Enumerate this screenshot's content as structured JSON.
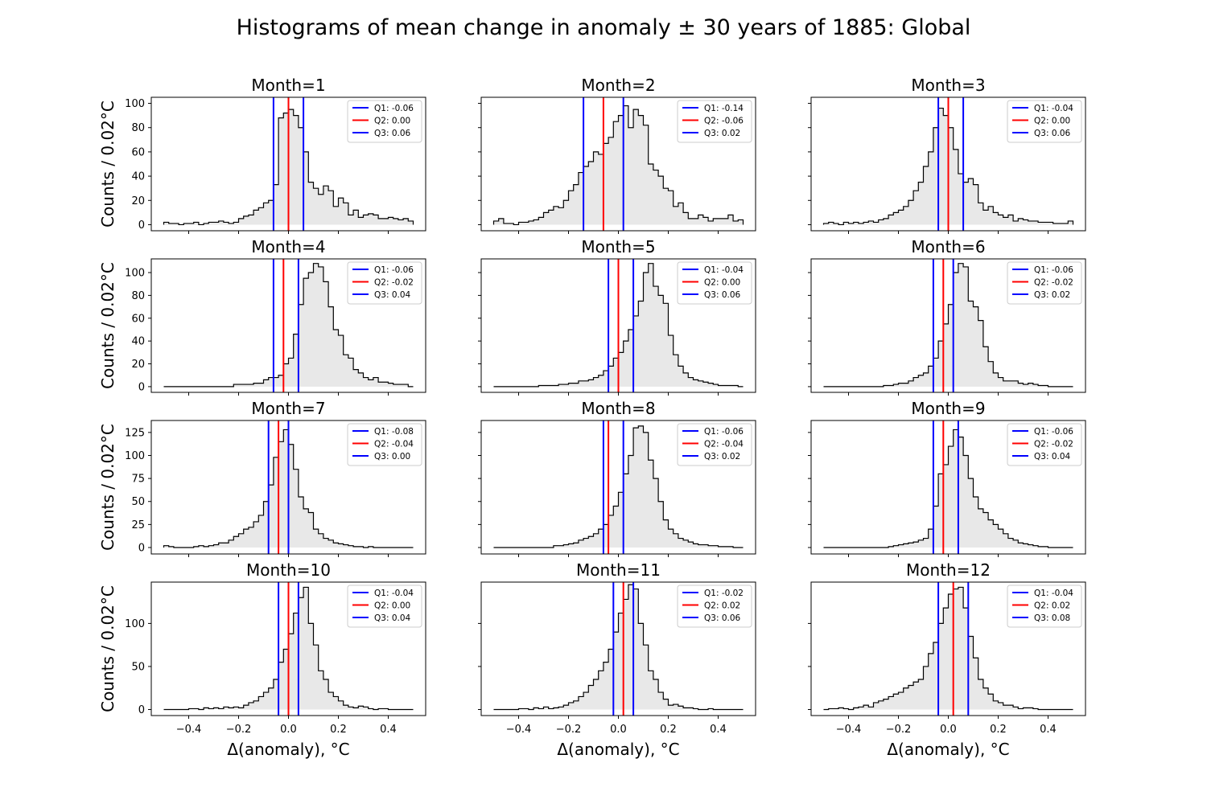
{
  "figure": {
    "title": "Histograms of mean change in anomaly ± 30 years of 1885: Global"
  },
  "chart_data": [
    {
      "type": "bar",
      "title": "Month=1",
      "ylabel": "Counts / 0.02°C",
      "xlabel": "",
      "xlim": [
        -0.55,
        0.55
      ],
      "ylim": [
        -5,
        105
      ],
      "yticks": [
        0,
        20,
        40,
        60,
        80,
        100
      ],
      "ytick_labels": [
        "0",
        "20",
        "40",
        "60",
        "80",
        "100"
      ],
      "show_yticklabels": true,
      "xticks": [
        -0.4,
        -0.2,
        0.0,
        0.2,
        0.4
      ],
      "xtick_labels": [],
      "show_xticklabels": false,
      "bin_edges_range": [
        -0.5,
        0.5
      ],
      "bin_width": 0.02,
      "counts": [
        2,
        1,
        1,
        0,
        1,
        1,
        2,
        0,
        1,
        2,
        2,
        3,
        2,
        1,
        2,
        5,
        7,
        8,
        12,
        14,
        18,
        20,
        33,
        88,
        92,
        95,
        90,
        80,
        60,
        35,
        30,
        25,
        32,
        28,
        15,
        22,
        18,
        8,
        12,
        6,
        8,
        9,
        8,
        5,
        5,
        6,
        5,
        4,
        5,
        3
      ],
      "quartiles": [
        {
          "name": "Q1: -0.06",
          "x": -0.06,
          "color": "#0000ff"
        },
        {
          "name": "Q2: 0.00",
          "x": 0.0,
          "color": "#ff0000"
        },
        {
          "name": "Q3: 0.06",
          "x": 0.06,
          "color": "#0000ff"
        }
      ]
    },
    {
      "type": "bar",
      "title": "Month=2",
      "ylabel": "",
      "xlabel": "",
      "xlim": [
        -0.55,
        0.55
      ],
      "ylim": [
        -5,
        105
      ],
      "yticks": [
        0,
        20,
        40,
        60,
        80,
        100
      ],
      "ytick_labels": [],
      "show_yticklabels": false,
      "xticks": [
        -0.4,
        -0.2,
        0.0,
        0.2,
        0.4
      ],
      "xtick_labels": [],
      "show_xticklabels": false,
      "bin_edges_range": [
        -0.5,
        0.5
      ],
      "bin_width": 0.02,
      "counts": [
        3,
        5,
        1,
        1,
        0,
        2,
        2,
        3,
        4,
        6,
        10,
        12,
        15,
        14,
        20,
        28,
        33,
        43,
        48,
        52,
        60,
        58,
        67,
        72,
        85,
        90,
        98,
        80,
        95,
        90,
        82,
        50,
        45,
        40,
        30,
        28,
        15,
        18,
        10,
        5,
        5,
        8,
        6,
        3,
        5,
        5,
        5,
        8,
        3,
        4
      ],
      "quartiles": [
        {
          "name": "Q1: -0.14",
          "x": -0.14,
          "color": "#0000ff"
        },
        {
          "name": "Q2: -0.06",
          "x": -0.06,
          "color": "#ff0000"
        },
        {
          "name": "Q3: 0.02",
          "x": 0.02,
          "color": "#0000ff"
        }
      ]
    },
    {
      "type": "bar",
      "title": "Month=3",
      "ylabel": "",
      "xlabel": "",
      "xlim": [
        -0.55,
        0.55
      ],
      "ylim": [
        -5,
        105
      ],
      "yticks": [
        0,
        20,
        40,
        60,
        80,
        100
      ],
      "ytick_labels": [],
      "show_yticklabels": false,
      "xticks": [
        -0.4,
        -0.2,
        0.0,
        0.2,
        0.4
      ],
      "xtick_labels": [],
      "show_xticklabels": false,
      "bin_edges_range": [
        -0.5,
        0.5
      ],
      "bin_width": 0.02,
      "counts": [
        1,
        2,
        1,
        0,
        2,
        1,
        2,
        1,
        2,
        3,
        2,
        4,
        5,
        8,
        10,
        12,
        15,
        20,
        28,
        35,
        48,
        60,
        80,
        96,
        90,
        80,
        62,
        42,
        35,
        38,
        33,
        18,
        12,
        15,
        10,
        8,
        6,
        8,
        3,
        5,
        4,
        3,
        3,
        2,
        2,
        2,
        1,
        1,
        1,
        3
      ],
      "quartiles": [
        {
          "name": "Q1: -0.04",
          "x": -0.04,
          "color": "#0000ff"
        },
        {
          "name": "Q2: 0.00",
          "x": 0.0,
          "color": "#ff0000"
        },
        {
          "name": "Q3: 0.06",
          "x": 0.06,
          "color": "#0000ff"
        }
      ]
    },
    {
      "type": "bar",
      "title": "Month=4",
      "ylabel": "Counts / 0.02°C",
      "xlabel": "",
      "xlim": [
        -0.55,
        0.55
      ],
      "ylim": [
        -5,
        112
      ],
      "yticks": [
        0,
        20,
        40,
        60,
        80,
        100
      ],
      "ytick_labels": [
        "0",
        "20",
        "40",
        "60",
        "80",
        "100"
      ],
      "show_yticklabels": true,
      "xticks": [
        -0.4,
        -0.2,
        0.0,
        0.2,
        0.4
      ],
      "xtick_labels": [],
      "show_xticklabels": false,
      "bin_edges_range": [
        -0.5,
        0.5
      ],
      "bin_width": 0.02,
      "counts": [
        0,
        0,
        0,
        0,
        0,
        0,
        0,
        0,
        0,
        0,
        0,
        0,
        0,
        0,
        2,
        2,
        2,
        2,
        3,
        3,
        6,
        8,
        8,
        10,
        20,
        25,
        46,
        72,
        95,
        100,
        108,
        105,
        92,
        70,
        50,
        45,
        28,
        25,
        15,
        12,
        8,
        6,
        8,
        4,
        4,
        3,
        2,
        2,
        2,
        0
      ],
      "quartiles": [
        {
          "name": "Q1: -0.06",
          "x": -0.06,
          "color": "#0000ff"
        },
        {
          "name": "Q2: -0.02",
          "x": -0.02,
          "color": "#ff0000"
        },
        {
          "name": "Q3: 0.04",
          "x": 0.04,
          "color": "#0000ff"
        }
      ]
    },
    {
      "type": "bar",
      "title": "Month=5",
      "ylabel": "",
      "xlabel": "",
      "xlim": [
        -0.55,
        0.55
      ],
      "ylim": [
        -5,
        112
      ],
      "yticks": [
        0,
        20,
        40,
        60,
        80,
        100
      ],
      "ytick_labels": [],
      "show_yticklabels": false,
      "xticks": [
        -0.4,
        -0.2,
        0.0,
        0.2,
        0.4
      ],
      "xtick_labels": [],
      "show_xticklabels": false,
      "bin_edges_range": [
        -0.5,
        0.5
      ],
      "bin_width": 0.02,
      "counts": [
        0,
        0,
        0,
        0,
        0,
        0,
        0,
        0,
        0,
        1,
        1,
        1,
        1,
        2,
        2,
        3,
        3,
        5,
        5,
        6,
        8,
        10,
        14,
        18,
        25,
        30,
        40,
        50,
        62,
        75,
        100,
        108,
        88,
        80,
        73,
        45,
        28,
        18,
        12,
        8,
        6,
        5,
        4,
        3,
        2,
        1,
        1,
        1,
        1,
        0
      ],
      "quartiles": [
        {
          "name": "Q1: -0.04",
          "x": -0.04,
          "color": "#0000ff"
        },
        {
          "name": "Q2: 0.00",
          "x": 0.0,
          "color": "#ff0000"
        },
        {
          "name": "Q3: 0.06",
          "x": 0.06,
          "color": "#0000ff"
        }
      ]
    },
    {
      "type": "bar",
      "title": "Month=6",
      "ylabel": "",
      "xlabel": "",
      "xlim": [
        -0.55,
        0.55
      ],
      "ylim": [
        -5,
        112
      ],
      "yticks": [
        0,
        20,
        40,
        60,
        80,
        100
      ],
      "ytick_labels": [],
      "show_yticklabels": false,
      "xticks": [
        -0.4,
        -0.2,
        0.0,
        0.2,
        0.4
      ],
      "xtick_labels": [],
      "show_xticklabels": false,
      "bin_edges_range": [
        -0.5,
        0.5
      ],
      "bin_width": 0.02,
      "counts": [
        0,
        0,
        0,
        0,
        0,
        0,
        0,
        0,
        0,
        0,
        0,
        0,
        1,
        1,
        2,
        3,
        3,
        5,
        8,
        10,
        12,
        18,
        25,
        40,
        55,
        72,
        100,
        108,
        105,
        75,
        70,
        58,
        35,
        22,
        12,
        8,
        5,
        5,
        5,
        3,
        2,
        3,
        2,
        1,
        1,
        0,
        0,
        0,
        0,
        0
      ],
      "quartiles": [
        {
          "name": "Q1: -0.06",
          "x": -0.06,
          "color": "#0000ff"
        },
        {
          "name": "Q2: -0.02",
          "x": -0.02,
          "color": "#ff0000"
        },
        {
          "name": "Q3: 0.02",
          "x": 0.02,
          "color": "#0000ff"
        }
      ]
    },
    {
      "type": "bar",
      "title": "Month=7",
      "ylabel": "Counts / 0.02°C",
      "xlabel": "",
      "xlim": [
        -0.55,
        0.55
      ],
      "ylim": [
        -7,
        138
      ],
      "yticks": [
        0,
        25,
        50,
        75,
        100,
        125
      ],
      "ytick_labels": [
        "0",
        "25",
        "50",
        "75",
        "100",
        "125"
      ],
      "show_yticklabels": true,
      "xticks": [
        -0.4,
        -0.2,
        0.0,
        0.2,
        0.4
      ],
      "xtick_labels": [],
      "show_xticklabels": false,
      "bin_edges_range": [
        -0.5,
        0.5
      ],
      "bin_width": 0.02,
      "counts": [
        2,
        1,
        0,
        0,
        0,
        0,
        1,
        2,
        1,
        2,
        3,
        5,
        5,
        8,
        12,
        15,
        20,
        22,
        28,
        35,
        50,
        68,
        98,
        115,
        128,
        112,
        85,
        55,
        42,
        38,
        20,
        15,
        10,
        8,
        5,
        4,
        3,
        2,
        1,
        1,
        0,
        1,
        0,
        0,
        0,
        0,
        0,
        0,
        0,
        0
      ],
      "quartiles": [
        {
          "name": "Q1: -0.08",
          "x": -0.08,
          "color": "#0000ff"
        },
        {
          "name": "Q2: -0.04",
          "x": -0.04,
          "color": "#ff0000"
        },
        {
          "name": "Q3: 0.00",
          "x": 0.0,
          "color": "#0000ff"
        }
      ]
    },
    {
      "type": "bar",
      "title": "Month=8",
      "ylabel": "",
      "xlabel": "",
      "xlim": [
        -0.55,
        0.55
      ],
      "ylim": [
        -7,
        138
      ],
      "yticks": [
        0,
        25,
        50,
        75,
        100,
        125
      ],
      "ytick_labels": [],
      "show_yticklabels": false,
      "xticks": [
        -0.4,
        -0.2,
        0.0,
        0.2,
        0.4
      ],
      "xtick_labels": [],
      "show_xticklabels": false,
      "bin_edges_range": [
        -0.5,
        0.5
      ],
      "bin_width": 0.02,
      "counts": [
        0,
        0,
        0,
        0,
        0,
        0,
        0,
        0,
        0,
        0,
        0,
        0,
        2,
        2,
        3,
        4,
        5,
        8,
        10,
        12,
        15,
        20,
        25,
        35,
        45,
        60,
        80,
        100,
        130,
        132,
        125,
        95,
        75,
        50,
        30,
        20,
        15,
        10,
        8,
        6,
        4,
        3,
        3,
        2,
        2,
        1,
        1,
        1,
        0,
        0
      ],
      "quartiles": [
        {
          "name": "Q1: -0.06",
          "x": -0.06,
          "color": "#0000ff"
        },
        {
          "name": "Q2: -0.04",
          "x": -0.04,
          "color": "#ff0000"
        },
        {
          "name": "Q3: 0.02",
          "x": 0.02,
          "color": "#0000ff"
        }
      ]
    },
    {
      "type": "bar",
      "title": "Month=9",
      "ylabel": "",
      "xlabel": "",
      "xlim": [
        -0.55,
        0.55
      ],
      "ylim": [
        -7,
        138
      ],
      "yticks": [
        0,
        25,
        50,
        75,
        100,
        125
      ],
      "ytick_labels": [],
      "show_yticklabels": false,
      "xticks": [
        -0.4,
        -0.2,
        0.0,
        0.2,
        0.4
      ],
      "xtick_labels": [],
      "show_xticklabels": false,
      "bin_edges_range": [
        -0.5,
        0.5
      ],
      "bin_width": 0.02,
      "counts": [
        0,
        0,
        0,
        0,
        0,
        0,
        0,
        0,
        0,
        0,
        0,
        0,
        0,
        1,
        2,
        3,
        4,
        5,
        6,
        8,
        10,
        20,
        45,
        80,
        90,
        110,
        128,
        120,
        100,
        75,
        55,
        42,
        38,
        30,
        25,
        20,
        15,
        10,
        8,
        5,
        4,
        3,
        2,
        1,
        1,
        0,
        0,
        0,
        0,
        0
      ],
      "quartiles": [
        {
          "name": "Q1: -0.06",
          "x": -0.06,
          "color": "#0000ff"
        },
        {
          "name": "Q2: -0.02",
          "x": -0.02,
          "color": "#ff0000"
        },
        {
          "name": "Q3: 0.04",
          "x": 0.04,
          "color": "#0000ff"
        }
      ]
    },
    {
      "type": "bar",
      "title": "Month=10",
      "ylabel": "Counts / 0.02°C",
      "xlabel": "Δ(anomaly), °C",
      "xlim": [
        -0.55,
        0.55
      ],
      "ylim": [
        -7,
        148
      ],
      "yticks": [
        0,
        50,
        100
      ],
      "ytick_labels": [
        "0",
        "50",
        "100"
      ],
      "show_yticklabels": true,
      "xticks": [
        -0.4,
        -0.2,
        0.0,
        0.2,
        0.4
      ],
      "xtick_labels": [
        "−0.4",
        "−0.2",
        "0.0",
        "0.2",
        "0.4"
      ],
      "show_xticklabels": true,
      "bin_edges_range": [
        -0.5,
        0.5
      ],
      "bin_width": 0.02,
      "counts": [
        0,
        0,
        0,
        0,
        0,
        1,
        1,
        0,
        2,
        1,
        2,
        1,
        3,
        2,
        3,
        2,
        5,
        8,
        10,
        15,
        20,
        25,
        35,
        55,
        70,
        88,
        112,
        130,
        142,
        100,
        75,
        45,
        35,
        20,
        15,
        10,
        5,
        3,
        2,
        4,
        3,
        1,
        0,
        1,
        1,
        0,
        0,
        0,
        0,
        0
      ],
      "quartiles": [
        {
          "name": "Q1: -0.04",
          "x": -0.04,
          "color": "#0000ff"
        },
        {
          "name": "Q2: 0.00",
          "x": 0.0,
          "color": "#ff0000"
        },
        {
          "name": "Q3: 0.04",
          "x": 0.04,
          "color": "#0000ff"
        }
      ]
    },
    {
      "type": "bar",
      "title": "Month=11",
      "ylabel": "",
      "xlabel": "Δ(anomaly), °C",
      "xlim": [
        -0.55,
        0.55
      ],
      "ylim": [
        -7,
        148
      ],
      "yticks": [
        0,
        50,
        100
      ],
      "ytick_labels": [],
      "show_yticklabels": false,
      "xticks": [
        -0.4,
        -0.2,
        0.0,
        0.2,
        0.4
      ],
      "xtick_labels": [
        "−0.4",
        "−0.2",
        "0.0",
        "0.2",
        "0.4"
      ],
      "show_xticklabels": true,
      "bin_edges_range": [
        -0.5,
        0.5
      ],
      "bin_width": 0.02,
      "counts": [
        0,
        0,
        0,
        0,
        0,
        1,
        1,
        0,
        2,
        1,
        3,
        1,
        2,
        3,
        5,
        8,
        10,
        15,
        20,
        28,
        35,
        45,
        55,
        70,
        90,
        112,
        128,
        145,
        140,
        100,
        75,
        45,
        35,
        20,
        12,
        5,
        6,
        4,
        2,
        2,
        1,
        0,
        0,
        1,
        0,
        0,
        0,
        0,
        0,
        0
      ],
      "quartiles": [
        {
          "name": "Q1: -0.02",
          "x": -0.02,
          "color": "#0000ff"
        },
        {
          "name": "Q2: 0.02",
          "x": 0.02,
          "color": "#ff0000"
        },
        {
          "name": "Q3: 0.06",
          "x": 0.06,
          "color": "#0000ff"
        }
      ]
    },
    {
      "type": "bar",
      "title": "Month=12",
      "ylabel": "",
      "xlabel": "Δ(anomaly), °C",
      "xlim": [
        -0.55,
        0.55
      ],
      "ylim": [
        -7,
        148
      ],
      "yticks": [
        0,
        50,
        100
      ],
      "ytick_labels": [],
      "show_yticklabels": false,
      "xticks": [
        -0.4,
        -0.2,
        0.0,
        0.2,
        0.4
      ],
      "xtick_labels": [
        "−0.4",
        "−0.2",
        "0.0",
        "0.2",
        "0.4"
      ],
      "show_xticklabels": true,
      "bin_edges_range": [
        -0.5,
        0.5
      ],
      "bin_width": 0.02,
      "counts": [
        0,
        1,
        1,
        2,
        1,
        0,
        2,
        3,
        5,
        3,
        8,
        10,
        12,
        15,
        18,
        20,
        25,
        28,
        32,
        35,
        50,
        65,
        78,
        100,
        118,
        134,
        140,
        142,
        118,
        85,
        60,
        35,
        25,
        18,
        10,
        8,
        5,
        5,
        3,
        1,
        2,
        2,
        1,
        0,
        0,
        0,
        0,
        0,
        0,
        0
      ],
      "quartiles": [
        {
          "name": "Q1: -0.04",
          "x": -0.04,
          "color": "#0000ff"
        },
        {
          "name": "Q2: 0.02",
          "x": 0.02,
          "color": "#ff0000"
        },
        {
          "name": "Q3: 0.08",
          "x": 0.08,
          "color": "#0000ff"
        }
      ]
    }
  ]
}
